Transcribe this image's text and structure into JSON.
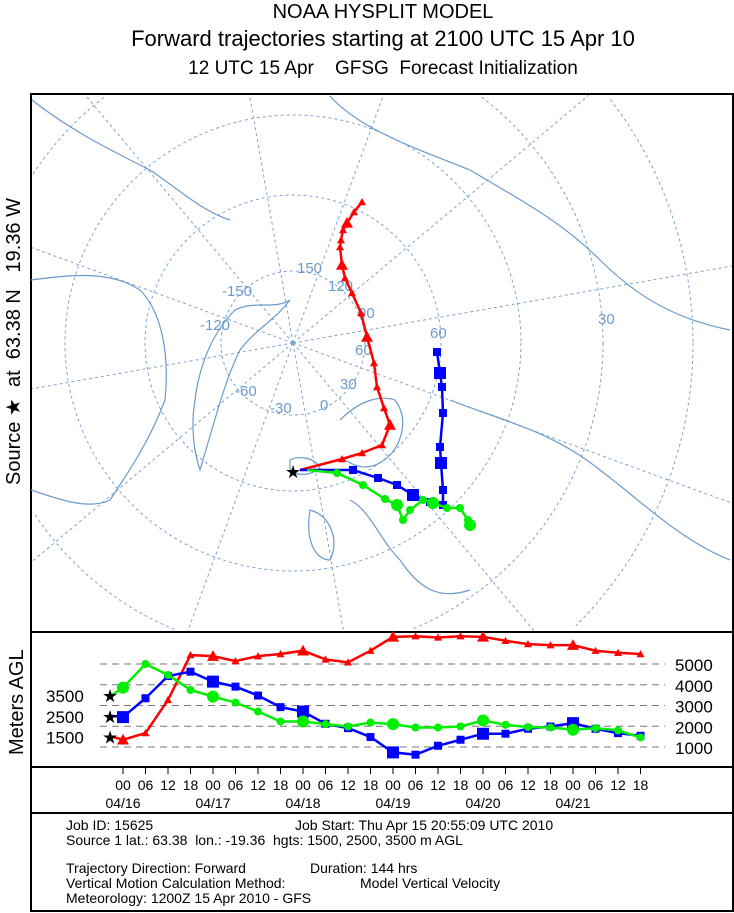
{
  "header": {
    "title": "NOAA HYSPLIT MODEL",
    "subtitle": "Forward trajectories starting at 2100 UTC 15 Apr 10",
    "init": "12 UTC 15 Apr    GFSG  Forecast Initialization"
  },
  "side_label": {
    "prefix": "Source",
    "star": "★",
    "text": "at  63.38 N   19.36 W"
  },
  "map": {
    "graticule_labels": [
      "150",
      "-150",
      "-120",
      "120",
      "90",
      "60",
      "30",
      "0",
      "-30",
      "-60",
      "60",
      "30"
    ],
    "colors": {
      "coast": "#6b9acb",
      "graticule": "#7fa3cf"
    }
  },
  "chart_data": {
    "type": "line",
    "ylabel": "Meters AGL",
    "y_ticks": [
      "5000",
      "4000",
      "3000",
      "2000",
      "1000"
    ],
    "start_heights": [
      "3500",
      "2500",
      "1500"
    ],
    "x_ticks": [
      "00",
      "06",
      "12",
      "18",
      "00",
      "06",
      "12",
      "18",
      "00",
      "06",
      "12",
      "18",
      "00",
      "06",
      "12",
      "18",
      "00",
      "06",
      "12",
      "18",
      "00",
      "06",
      "12",
      "18"
    ],
    "x_dates": [
      "04/16",
      "04/17",
      "04/18",
      "04/19",
      "04/20",
      "04/21"
    ],
    "x_hours_from_0416_00": [
      0,
      6,
      12,
      18,
      24,
      30,
      36,
      42,
      48,
      54,
      60,
      66,
      72,
      78,
      84,
      90,
      96,
      102,
      108,
      114,
      120,
      126,
      132,
      138
    ],
    "series": [
      {
        "color": "#ff0000",
        "marker": "triangle",
        "start": 1500,
        "values": [
          1350,
          1670,
          3270,
          5430,
          5380,
          5140,
          5380,
          5480,
          5640,
          5220,
          5080,
          5640,
          6310,
          6340,
          6280,
          6340,
          6310,
          6120,
          5960,
          5910,
          5910,
          5640,
          5540,
          5480
        ]
      },
      {
        "color": "#0000ff",
        "marker": "square",
        "start": 2500,
        "values": [
          2440,
          3350,
          4420,
          4630,
          4150,
          3910,
          3480,
          2920,
          2710,
          2120,
          1910,
          1480,
          740,
          630,
          1060,
          1350,
          1640,
          1640,
          1880,
          1990,
          2150,
          1880,
          1670,
          1540
        ]
      },
      {
        "color": "#00ee00",
        "marker": "circle",
        "start": 3500,
        "values": [
          3860,
          5000,
          4470,
          3750,
          3430,
          3140,
          2710,
          2230,
          2230,
          2100,
          1990,
          2180,
          2100,
          1940,
          1940,
          1990,
          2280,
          2070,
          1960,
          1940,
          1830,
          1910,
          1800,
          1460
        ]
      }
    ]
  },
  "info": {
    "job_id": "Job ID: 15625",
    "job_start": "Job Start: Thu Apr 15 20:55:09 UTC 2010",
    "source": "Source 1 lat.: 63.38  lon.: -19.36  hgts: 1500, 2500, 3500 m AGL",
    "direction": "Trajectory Direction: Forward",
    "duration": "Duration: 144 hrs",
    "vertical": "Vertical Motion Calculation Method:",
    "vertical_value": "Model Vertical Velocity",
    "meteorology": "Meteorology: 1200Z 15 Apr 2010 - GFS"
  }
}
